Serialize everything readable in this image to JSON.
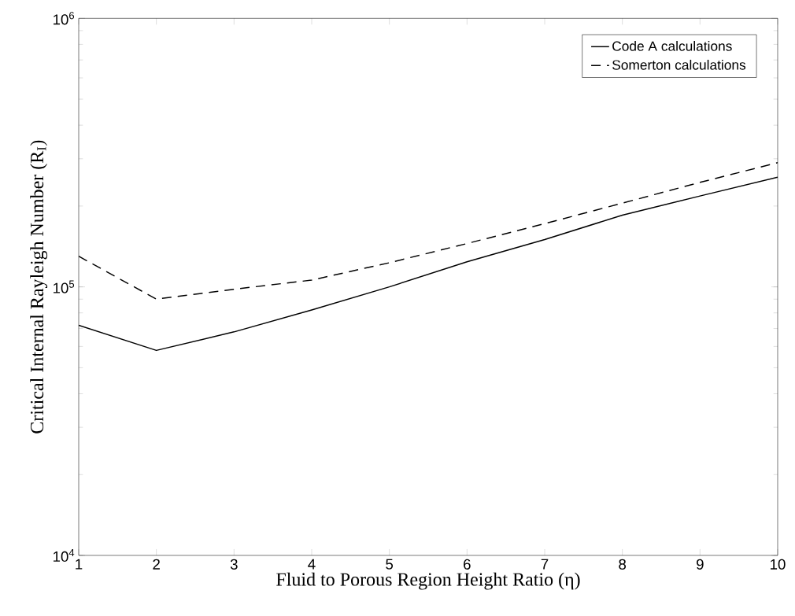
{
  "chart_data": {
    "type": "line",
    "xlabel": "Fluid to Porous Region Height Ratio (η)",
    "ylabel": "Critical Internal Rayleigh Number (R$_{I}$)",
    "x": [
      1,
      2,
      3,
      4,
      5,
      6,
      7,
      8,
      9,
      10
    ],
    "series": [
      {
        "name": "Code A calculations",
        "color": "#000000",
        "line_style": "solid",
        "values": [
          72000,
          58000,
          68000,
          82000,
          100000,
          124000,
          150000,
          185000,
          218000,
          256000
        ]
      },
      {
        "name": "Somerton calculations",
        "color": "#000000",
        "line_style": "dashed",
        "values": [
          130000,
          90000,
          98000,
          106000,
          123000,
          145000,
          172000,
          205000,
          245000,
          290000
        ]
      }
    ],
    "log": "y",
    "xlim": [
      1,
      10
    ],
    "ylim": [
      10000,
      1000000
    ],
    "xticks": [
      1,
      2,
      3,
      4,
      5,
      6,
      7,
      8,
      9,
      10
    ],
    "yticks": [
      {
        "value": 10000,
        "label": "10$^{4}$"
      },
      {
        "value": 100000,
        "label": "10$^{5}$"
      },
      {
        "value": 1000000,
        "label": "10$^{6}$"
      }
    ],
    "legend": "top right"
  }
}
